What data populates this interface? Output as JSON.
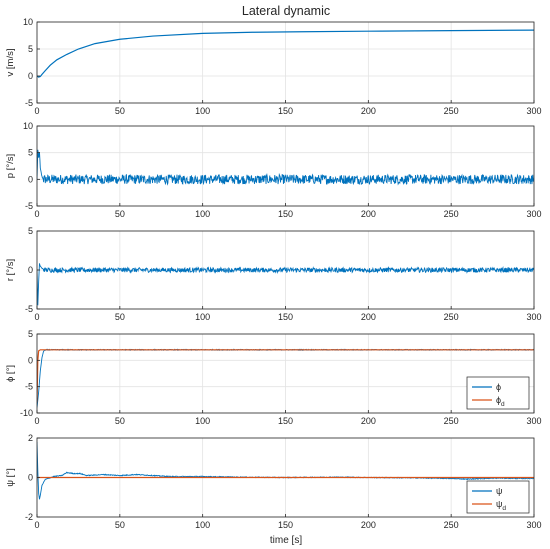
{
  "figure": {
    "title": "Lateral dynamic",
    "xlabel": "time [s]",
    "colors": {
      "series1": "#0072BD",
      "series2": "#D95319",
      "grid": "#e3e3e3",
      "axis": "#262626"
    }
  },
  "chart_data": [
    {
      "type": "line",
      "ylabel": "v [m/s]",
      "xlim": [
        0,
        300
      ],
      "ylim": [
        -5,
        10
      ],
      "xticks": [
        0,
        50,
        100,
        150,
        200,
        250,
        300
      ],
      "yticks": [
        -5,
        0,
        5,
        10
      ],
      "grid": true,
      "series": [
        {
          "x": [
            0,
            1,
            2,
            3,
            5,
            8,
            12,
            18,
            25,
            35,
            50,
            70,
            100,
            130,
            160,
            200,
            250,
            300
          ],
          "y": [
            0.0,
            -0.2,
            -0.1,
            0.3,
            1.0,
            2.0,
            3.0,
            4.0,
            5.0,
            6.0,
            6.8,
            7.4,
            7.9,
            8.1,
            8.2,
            8.3,
            8.4,
            8.5
          ]
        }
      ]
    },
    {
      "type": "line",
      "ylabel": "p [°/s]",
      "xlim": [
        0,
        300
      ],
      "ylim": [
        -5,
        10
      ],
      "xticks": [
        0,
        50,
        100,
        150,
        200,
        250,
        300
      ],
      "yticks": [
        -5,
        0,
        5,
        10
      ],
      "grid": true,
      "noise_amplitude": 0.9,
      "series": [
        {
          "x": [
            0,
            0.5,
            1,
            1.5,
            2,
            3,
            4,
            6,
            300
          ],
          "y": [
            0,
            5.5,
            4.0,
            5.2,
            2.0,
            0.5,
            0,
            0,
            0
          ]
        }
      ]
    },
    {
      "type": "line",
      "ylabel": "r [°/s]",
      "xlim": [
        0,
        300
      ],
      "ylim": [
        -5,
        5
      ],
      "xticks": [
        0,
        50,
        100,
        150,
        200,
        250,
        300
      ],
      "yticks": [
        -5,
        0,
        5
      ],
      "grid": true,
      "noise_amplitude": 0.3,
      "series": [
        {
          "x": [
            0,
            0.5,
            1,
            1.5,
            2,
            3,
            5,
            8,
            300
          ],
          "y": [
            0,
            -4.5,
            -1.5,
            0.8,
            0.5,
            0.2,
            0,
            0,
            0
          ]
        }
      ]
    },
    {
      "type": "line",
      "ylabel": "ϕ [°]",
      "xlim": [
        0,
        300
      ],
      "ylim": [
        -10,
        5
      ],
      "xticks": [
        0,
        50,
        100,
        150,
        200,
        250,
        300
      ],
      "yticks": [
        -10,
        -5,
        0,
        5
      ],
      "grid": true,
      "noise_amplitude": 0.08,
      "legend": {
        "location": "bottom-right",
        "entries": [
          {
            "base": "ϕ",
            "sub": ""
          },
          {
            "base": "ϕ",
            "sub": "d"
          }
        ]
      },
      "series": [
        {
          "x": [
            0,
            1,
            2,
            3,
            4,
            6,
            300
          ],
          "y": [
            -9,
            -6,
            -2,
            0.5,
            1.8,
            2.0,
            2.0
          ]
        },
        {
          "x": [
            0,
            0.5,
            1,
            2,
            300
          ],
          "y": [
            -8,
            0,
            1.8,
            2.0,
            2.0
          ]
        }
      ]
    },
    {
      "type": "line",
      "ylabel": "ψ [°]",
      "xlim": [
        0,
        300
      ],
      "ylim": [
        -2,
        2
      ],
      "xticks": [
        0,
        50,
        100,
        150,
        200,
        250,
        300
      ],
      "yticks": [
        -2,
        0,
        2
      ],
      "grid": true,
      "noise_amplitude": 0.02,
      "legend": {
        "location": "bottom-right",
        "entries": [
          {
            "base": "ψ",
            "sub": ""
          },
          {
            "base": "ψ",
            "sub": "d"
          }
        ]
      },
      "series": [
        {
          "x": [
            0,
            0.5,
            1,
            1.5,
            2,
            3,
            5,
            10,
            15,
            18,
            22,
            26,
            30,
            40,
            50,
            60,
            70,
            80,
            90,
            100,
            120,
            150,
            180,
            200,
            230,
            250,
            260,
            270,
            280,
            290,
            300
          ],
          "y": [
            1.8,
            0.3,
            -0.8,
            -1.1,
            -0.9,
            -0.4,
            -0.1,
            0.05,
            0.1,
            0.25,
            0.2,
            0.2,
            0.1,
            0.15,
            0.1,
            0.15,
            0.1,
            0.05,
            0.05,
            0.05,
            0.02,
            0.0,
            0.02,
            0.0,
            -0.02,
            -0.05,
            -0.08,
            -0.05,
            -0.03,
            -0.05,
            -0.05
          ]
        },
        {
          "x": [
            0,
            2,
            300
          ],
          "y": [
            0,
            0,
            0
          ]
        }
      ]
    }
  ]
}
